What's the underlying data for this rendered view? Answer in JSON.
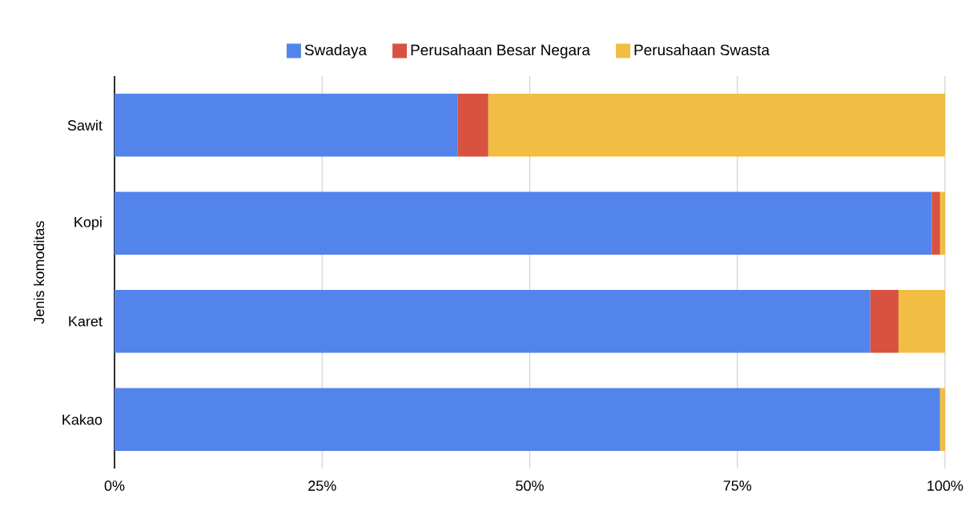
{
  "chart_data": {
    "type": "bar",
    "orientation": "horizontal",
    "stacked": true,
    "ylabel": "Jenis komoditas",
    "categories": [
      "Sawit",
      "Kopi",
      "Karet",
      "Kakao"
    ],
    "series": [
      {
        "name": "Swadaya",
        "color": "#5384ec",
        "values": [
          41.3,
          98.4,
          91.0,
          99.4
        ]
      },
      {
        "name": "Perusahaan Besar Negara",
        "color": "#d95140",
        "values": [
          3.7,
          1.0,
          3.4,
          0
        ]
      },
      {
        "name": "Perusahaan Swasta",
        "color": "#f1bd42",
        "values": [
          55.0,
          0.6,
          5.6,
          0.6
        ]
      }
    ],
    "xlim": [
      0,
      100
    ],
    "xticks": [
      {
        "value": 0,
        "label": "0%"
      },
      {
        "value": 25,
        "label": "25%"
      },
      {
        "value": 50,
        "label": "50%"
      },
      {
        "value": 75,
        "label": "75%"
      },
      {
        "value": 100,
        "label": "100%"
      }
    ],
    "grid": "x",
    "legend": "top"
  }
}
